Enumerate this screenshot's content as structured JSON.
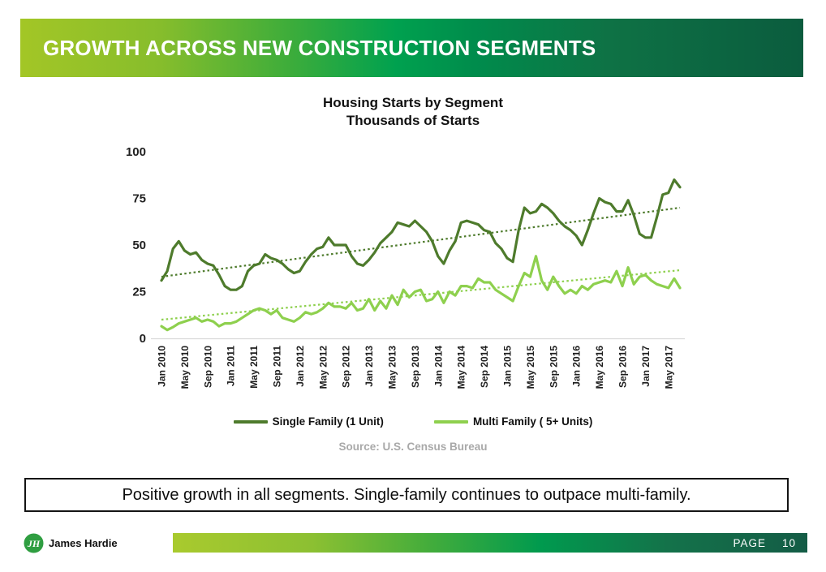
{
  "slide": {
    "title": "GROWTH ACROSS NEW CONSTRUCTION SEGMENTS",
    "takeaway": "Positive growth in all segments. Single-family continues to outpace multi-family.",
    "source": "Source: U.S. Census Bureau",
    "footer": {
      "brand": "James Hardie",
      "logo_monogram": "JH",
      "page_label": "PAGE",
      "page_number": "10"
    }
  },
  "colors": {
    "single_family": "#4e7b2c",
    "multi_family": "#8ed04e",
    "header_left": "#a3c626",
    "header_right": "#0b5c3e",
    "axis_line": "#d9d9d9",
    "source_text": "#a9a9a9"
  },
  "chart_data": {
    "type": "line",
    "title": "Housing Starts by Segment",
    "subtitle": "Thousands of Starts",
    "ylabel": "Thousands of Starts",
    "ylim": [
      0,
      100
    ],
    "yticks": [
      0,
      25,
      50,
      75,
      100
    ],
    "grid": false,
    "legend_position": "bottom",
    "x_unit": "month",
    "x_range": "Jan 2010 - Jul 2017",
    "x_tick_every": 4,
    "x_tick_labels": [
      "Jan 2010",
      "May 2010",
      "Sep 2010",
      "Jan 2011",
      "May 2011",
      "Sep 2011",
      "Jan 2012",
      "May 2012",
      "Sep 2012",
      "Jan 2013",
      "May 2013",
      "Sep 2013",
      "Jan 2014",
      "May 2014",
      "Sep 2014",
      "Jan 2015",
      "May 2015",
      "Sep 2015",
      "Jan 2016",
      "May 2016",
      "Sep 2016",
      "Jan 2017",
      "May 2017"
    ],
    "series": [
      {
        "name": "Single Family (1 Unit)",
        "color": "#4e7b2c",
        "trend": {
          "start": 33,
          "end": 70
        },
        "values": [
          31,
          36,
          48,
          52,
          47,
          45,
          46,
          42,
          40,
          39,
          34,
          28,
          26,
          26,
          28,
          36,
          39,
          40,
          45,
          43,
          42,
          40,
          37,
          35,
          36,
          41,
          45,
          48,
          49,
          54,
          50,
          50,
          50,
          44,
          40,
          39,
          42,
          46,
          51,
          54,
          57,
          62,
          61,
          60,
          63,
          60,
          57,
          52,
          44,
          40,
          47,
          52,
          62,
          63,
          62,
          61,
          58,
          57,
          51,
          48,
          43,
          41,
          58,
          70,
          67,
          68,
          72,
          70,
          67,
          63,
          60,
          58,
          55,
          50,
          58,
          67,
          75,
          73,
          72,
          68,
          68,
          74,
          66,
          56,
          54,
          54,
          65,
          77,
          78,
          85,
          81
        ]
      },
      {
        "name": "Multi Family ( 5+ Units)",
        "color": "#8ed04e",
        "trend": {
          "start": 10,
          "end": 36.5
        },
        "values": [
          6.5,
          4.5,
          6,
          8,
          9,
          10,
          11,
          9,
          10,
          9,
          6.5,
          8,
          8,
          9,
          11,
          13,
          15,
          16,
          15,
          13,
          15,
          11,
          10,
          9,
          11,
          14,
          13,
          14,
          16,
          19,
          17,
          17,
          16,
          19,
          15,
          16,
          21,
          15,
          20,
          16,
          23,
          18,
          26,
          22,
          25,
          26,
          20,
          21,
          25,
          19,
          25,
          23,
          28,
          28,
          27,
          32,
          30,
          30,
          26,
          24,
          22,
          20,
          28,
          35,
          33,
          44,
          31,
          26,
          33,
          28,
          24,
          26,
          24,
          28,
          26,
          29,
          30,
          31,
          30,
          36,
          28,
          38,
          29,
          33,
          34,
          31,
          29,
          28,
          27,
          32,
          27
        ]
      }
    ]
  }
}
